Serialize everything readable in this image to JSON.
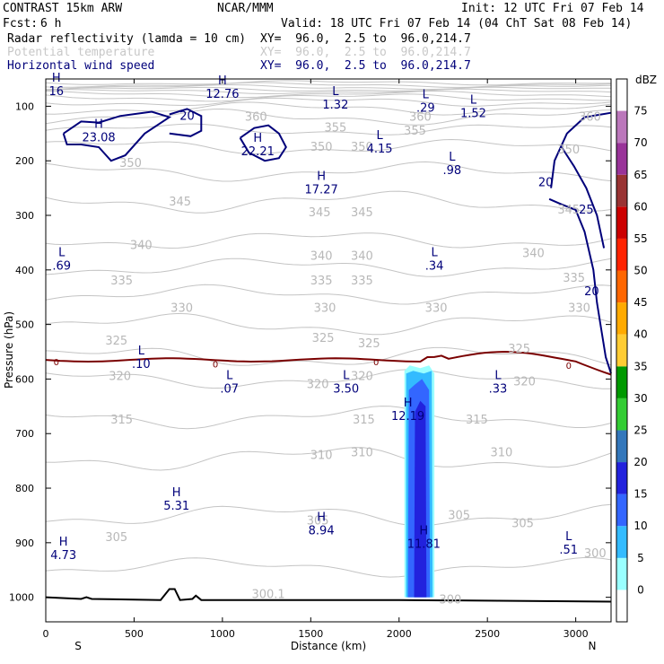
{
  "header": {
    "model": "CONTRAST 15km ARW",
    "org": "NCAR/MMM",
    "init": "Init: 12 UTC Fri 07 Feb 14",
    "fcst_label": "Fcst:",
    "fcst_value": "6 h",
    "valid": "Valid: 18 UTC Fri 07 Feb 14 (04 ChT Sat 08 Feb 14)"
  },
  "fields": [
    {
      "name": "Radar reflectivity (lamda = 10 cm)",
      "xy": "XY=  96.0,  2.5 to  96.0,214.7",
      "color": "#000000"
    },
    {
      "name": "Potential temperature",
      "xy": "XY=  96.0,  2.5 to  96.0,214.7",
      "color": "#c8c8c8"
    },
    {
      "name": "Horizontal wind speed",
      "xy": "XY=  96.0,  2.5 to  96.0,214.7",
      "color": "#00007a"
    }
  ],
  "chart_data": {
    "type": "cross-section",
    "xlabel": "Distance (km)",
    "ylabel": "Pressure (hPa)",
    "xlim": [
      0,
      3200
    ],
    "ylim": [
      1045,
      50
    ],
    "x_ticks": [
      0,
      500,
      1000,
      1500,
      2000,
      2500,
      3000
    ],
    "y_ticks": [
      100,
      200,
      300,
      400,
      500,
      600,
      700,
      800,
      900,
      1000
    ],
    "left_end": "S",
    "right_end": "N",
    "colorbar": {
      "unit": "dBZ",
      "levels": [
        "0",
        "5",
        "10",
        "15",
        "20",
        "25",
        "30",
        "35",
        "40",
        "45",
        "50",
        "55",
        "60",
        "65",
        "70",
        "75"
      ],
      "colors": [
        "#ffffff",
        "#99ffff",
        "#33bbff",
        "#3366ff",
        "#2222dd",
        "#3377bb",
        "#33cc33",
        "#009900",
        "#ffcc33",
        "#ffaa00",
        "#ff6600",
        "#ff2200",
        "#cc0000",
        "#993333",
        "#993399",
        "#bb77bb"
      ]
    },
    "theta_labels": [
      {
        "text": "360",
        "x": 1190,
        "p": 120
      },
      {
        "text": "360",
        "x": 2120,
        "p": 120
      },
      {
        "text": "360",
        "x": 3080,
        "p": 120
      },
      {
        "text": "355",
        "x": 1640,
        "p": 140
      },
      {
        "text": "355",
        "x": 2090,
        "p": 145
      },
      {
        "text": "350",
        "x": 480,
        "p": 205
      },
      {
        "text": "350",
        "x": 1560,
        "p": 175
      },
      {
        "text": "350",
        "x": 1790,
        "p": 175
      },
      {
        "text": "350",
        "x": 2960,
        "p": 180
      },
      {
        "text": "345",
        "x": 760,
        "p": 275
      },
      {
        "text": "345",
        "x": 1550,
        "p": 295
      },
      {
        "text": "345",
        "x": 1790,
        "p": 295
      },
      {
        "text": "345",
        "x": 2960,
        "p": 290
      },
      {
        "text": "340",
        "x": 540,
        "p": 355
      },
      {
        "text": "340",
        "x": 1560,
        "p": 375
      },
      {
        "text": "340",
        "x": 1790,
        "p": 375
      },
      {
        "text": "340",
        "x": 2760,
        "p": 370
      },
      {
        "text": "335",
        "x": 430,
        "p": 420
      },
      {
        "text": "335",
        "x": 1560,
        "p": 420
      },
      {
        "text": "335",
        "x": 1790,
        "p": 420
      },
      {
        "text": "335",
        "x": 2990,
        "p": 415
      },
      {
        "text": "330",
        "x": 770,
        "p": 470
      },
      {
        "text": "330",
        "x": 1580,
        "p": 470
      },
      {
        "text": "330",
        "x": 2210,
        "p": 470
      },
      {
        "text": "330",
        "x": 3020,
        "p": 470
      },
      {
        "text": "325",
        "x": 400,
        "p": 530
      },
      {
        "text": "325",
        "x": 1570,
        "p": 525
      },
      {
        "text": "325",
        "x": 1830,
        "p": 535
      },
      {
        "text": "325",
        "x": 2680,
        "p": 545
      },
      {
        "text": "320",
        "x": 420,
        "p": 595
      },
      {
        "text": "320",
        "x": 1540,
        "p": 610
      },
      {
        "text": "320",
        "x": 1790,
        "p": 595
      },
      {
        "text": "320",
        "x": 2710,
        "p": 605
      },
      {
        "text": "315",
        "x": 430,
        "p": 675
      },
      {
        "text": "315",
        "x": 1800,
        "p": 675
      },
      {
        "text": "315",
        "x": 2440,
        "p": 675
      },
      {
        "text": "310",
        "x": 1560,
        "p": 740
      },
      {
        "text": "310",
        "x": 1790,
        "p": 735
      },
      {
        "text": "310",
        "x": 2580,
        "p": 735
      },
      {
        "text": "305",
        "x": 400,
        "p": 890
      },
      {
        "text": "305",
        "x": 1540,
        "p": 860
      },
      {
        "text": "305",
        "x": 2340,
        "p": 850
      },
      {
        "text": "305",
        "x": 2700,
        "p": 865
      },
      {
        "text": "300",
        "x": 3110,
        "p": 920
      },
      {
        "text": "300",
        "x": 2290,
        "p": 1005
      },
      {
        "text": "300.1",
        "x": 1260,
        "p": 995
      }
    ],
    "wind_labels": [
      {
        "text": "20",
        "x": 800,
        "p": 118
      },
      {
        "text": "20",
        "x": 2830,
        "p": 240
      },
      {
        "text": "25",
        "x": 3060,
        "p": 290
      },
      {
        "text": "20",
        "x": 3090,
        "p": 440
      }
    ],
    "zero_labels": [
      {
        "text": "0",
        "x": 60,
        "p": 568
      },
      {
        "text": "0",
        "x": 960,
        "p": 572
      },
      {
        "text": "0",
        "x": 1870,
        "p": 568
      },
      {
        "text": "0",
        "x": 2960,
        "p": 575
      }
    ],
    "extrema": [
      {
        "type": "H",
        "value": "16",
        "x": 60,
        "p": 55
      },
      {
        "type": "H",
        "value": "12.76",
        "x": 1000,
        "p": 60
      },
      {
        "type": "L",
        "value": "1.32",
        "x": 1640,
        "p": 80
      },
      {
        "type": "L",
        "value": ".29",
        "x": 2150,
        "p": 85
      },
      {
        "type": "L",
        "value": "1.52",
        "x": 2420,
        "p": 95
      },
      {
        "type": "H",
        "value": "23.08",
        "x": 300,
        "p": 140
      },
      {
        "type": "H",
        "value": "22.21",
        "x": 1200,
        "p": 165
      },
      {
        "type": "L",
        "value": "4.15",
        "x": 1890,
        "p": 160
      },
      {
        "type": "L",
        "value": ".98",
        "x": 2300,
        "p": 200
      },
      {
        "type": "H",
        "value": "17.27",
        "x": 1560,
        "p": 235
      },
      {
        "type": "L",
        "value": ".69",
        "x": 90,
        "p": 375
      },
      {
        "type": "L",
        "value": ".34",
        "x": 2200,
        "p": 375
      },
      {
        "type": "L",
        "value": ".10",
        "x": 540,
        "p": 555
      },
      {
        "type": "L",
        "value": ".07",
        "x": 1040,
        "p": 600
      },
      {
        "type": "L",
        "value": "3.50",
        "x": 1700,
        "p": 600
      },
      {
        "type": "L",
        "value": ".33",
        "x": 2560,
        "p": 600
      },
      {
        "type": "H",
        "value": "12.19",
        "x": 2050,
        "p": 650
      },
      {
        "type": "H",
        "value": "5.31",
        "x": 740,
        "p": 815
      },
      {
        "type": "H",
        "value": "8.94",
        "x": 1560,
        "p": 860
      },
      {
        "type": "H",
        "value": "11.81",
        "x": 2140,
        "p": 885
      },
      {
        "type": "L",
        "value": ".51",
        "x": 2960,
        "p": 895
      },
      {
        "type": "H",
        "value": "4.73",
        "x": 100,
        "p": 905
      }
    ]
  }
}
